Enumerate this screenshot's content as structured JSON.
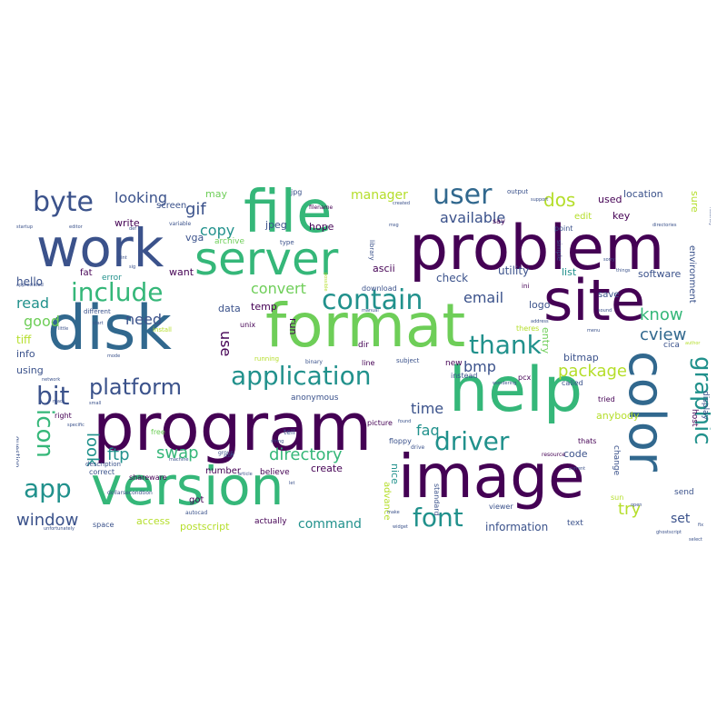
{
  "palette": {
    "dark_purple": "#440154",
    "indigo": "#3b528b",
    "blue": "#31688e",
    "teal": "#21918c",
    "green": "#35b779",
    "light_green": "#6ece58",
    "lime": "#b5de2b",
    "yellow": "#fde725"
  },
  "words": {
    "problem": "problem",
    "file": "file",
    "work": "work",
    "server": "server",
    "site": "site",
    "disk": "disk",
    "format": "format",
    "help": "help",
    "program": "program",
    "image": "image",
    "color": "color",
    "version": "version",
    "user": "user",
    "byte": "byte",
    "include": "include",
    "contain": "contain",
    "application": "application",
    "thank": "thank",
    "platform": "platform",
    "driver": "driver",
    "graphic": "graphic",
    "icon": "icon",
    "bit": "bit",
    "app": "app",
    "font": "font",
    "window": "window",
    "directory": "directory",
    "swap": "swap",
    "ftp": "ftp",
    "look": "look",
    "gif": "gif",
    "copy": "copy",
    "convert": "convert",
    "looking": "looking",
    "dos": "dos",
    "available": "available",
    "email": "email",
    "read": "read",
    "good": "good",
    "need": "need",
    "use": "use",
    "cview": "cview",
    "know": "know",
    "package": "package",
    "bmp": "bmp",
    "time": "time",
    "faq": "faq",
    "try": "try",
    "set": "set",
    "command": "command",
    "information": "information",
    "manager": "manager",
    "hello": "hello",
    "tiff": "tiff",
    "info": "info",
    "using": "using",
    "hope": "hope",
    "data": "data",
    "temp": "temp",
    "run": "run",
    "ascii": "ascii",
    "utility": "utility",
    "check": "check",
    "list": "list",
    "logo": "logo",
    "software": "software",
    "entry": "entry",
    "bitmap": "bitmap",
    "code": "code",
    "anybody": "anybody",
    "sure": "sure",
    "may": "may",
    "write": "write",
    "screen": "screen",
    "jpeg": "jpeg",
    "vga": "vga",
    "want": "want",
    "fat": "fat",
    "error": "error",
    "archive": "archive",
    "location": "location",
    "used": "used",
    "key": "key",
    "edit": "edit",
    "save": "save",
    "environment": "environment",
    "create": "create",
    "nice": "nice",
    "advance": "advance",
    "access": "access",
    "postscript": "postscript",
    "actually": "actually",
    "got": "got",
    "number": "number",
    "believe": "believe",
    "anonymous": "anonymous",
    "dir": "dir",
    "new": "new",
    "text": "text",
    "change": "change",
    "host": "host",
    "display": "display",
    "send": "send",
    "sun": "sun",
    "viewer": "viewer",
    "tried": "tried",
    "called": "called",
    "thats": "thats",
    "point": "point",
    "download": "download",
    "space": "space",
    "correct": "correct",
    "shareware": "shareware",
    "description": "description",
    "question": "question",
    "right": "right",
    "free": "free",
    "tell": "tell",
    "floppy": "floppy",
    "standard": "standard",
    "picture": "picture",
    "pcx": "pcx",
    "instead": "instead",
    "theres": "theres",
    "subject": "subject",
    "running": "running",
    "line": "line",
    "unix": "unix",
    "cica": "cica",
    "different": "different",
    "ini": "ini",
    "output": "output",
    "install": "install",
    "library": "library",
    "filename": "filename",
    "jpg": "jpg",
    "may2": "say",
    "variable": "variable",
    "type": "type",
    "simple": "simple",
    "binary": "binary",
    "group": "group",
    "drive": "drive",
    "resource": "resource",
    "dollarsecondtion": "dollarsecondtion",
    "unfortunately": "unfortunately",
    "ghostscript": "ghostscript",
    "select": "select",
    "autocad": "autocad",
    "widget": "widget",
    "author": "author",
    "open": "open",
    "startup": "startup",
    "support": "support",
    "directories": "directories",
    "sorry": "sorry",
    "things": "things",
    "recently": "recently",
    "sound": "sound",
    "address": "address",
    "menu": "menu",
    "appreciated": "appreciated",
    "network": "network",
    "machine": "machine",
    "article": "article",
    "stuff": "stuff",
    "string": "string",
    "make": "make",
    "manual": "manual",
    "possible": "possible",
    "created": "created",
    "wondering": "wondering",
    "current": "current",
    "print": "print",
    "sig": "sig",
    "def": "def",
    "editor": "editor",
    "msg": "msg",
    "start": "start",
    "mode": "mode",
    "mac": "mac",
    "found": "found",
    "little": "little",
    "let": "let",
    "small": "small",
    "specific": "specific",
    "set2": "fix"
  }
}
